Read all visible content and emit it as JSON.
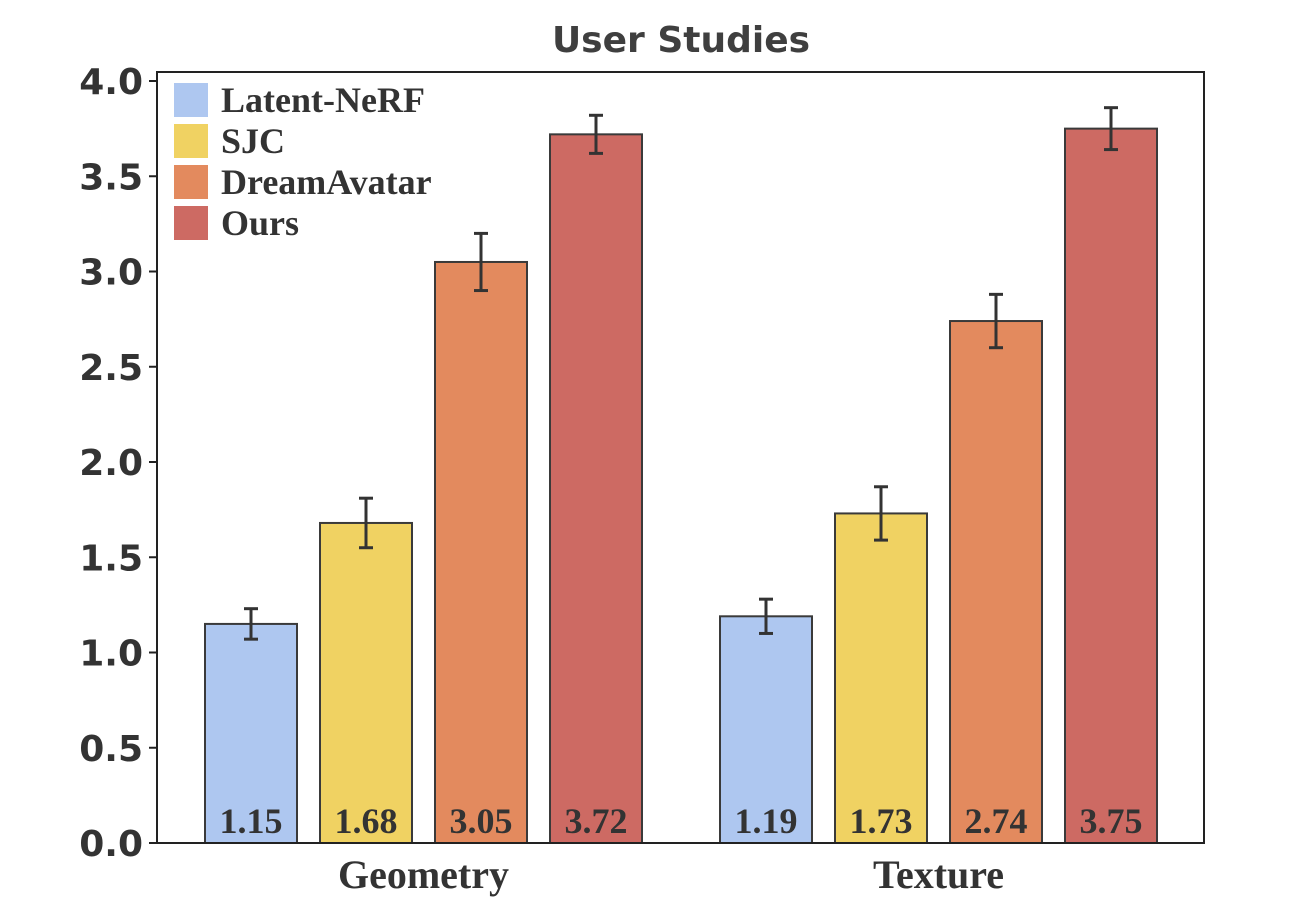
{
  "chart_data": {
    "type": "bar",
    "title": "User Studies",
    "xlabel": "",
    "ylabel": "",
    "categories": [
      "Geometry",
      "Texture"
    ],
    "ylim": [
      0,
      4.0
    ],
    "yticks": [
      "0.0",
      "0.5",
      "1.0",
      "1.5",
      "2.0",
      "2.5",
      "3.0",
      "3.5",
      "4.0"
    ],
    "legend_position": "top-left",
    "grid": false,
    "series": [
      {
        "name": "Latent-NeRF",
        "color": "#aec7f0",
        "values": [
          1.15,
          1.19
        ],
        "labels": [
          "1.15",
          "1.19"
        ],
        "err": [
          0.08,
          0.09
        ]
      },
      {
        "name": "SJC",
        "color": "#f0d262",
        "values": [
          1.68,
          1.73
        ],
        "labels": [
          "1.68",
          "1.73"
        ],
        "err": [
          0.13,
          0.14
        ]
      },
      {
        "name": "DreamAvatar",
        "color": "#e38a5e",
        "values": [
          3.05,
          2.74
        ],
        "labels": [
          "3.05",
          "2.74"
        ],
        "err": [
          0.15,
          0.14
        ]
      },
      {
        "name": "Ours",
        "color": "#cd6a63",
        "values": [
          3.72,
          3.75
        ],
        "labels": [
          "3.72",
          "3.75"
        ],
        "err": [
          0.1,
          0.11
        ]
      }
    ]
  }
}
